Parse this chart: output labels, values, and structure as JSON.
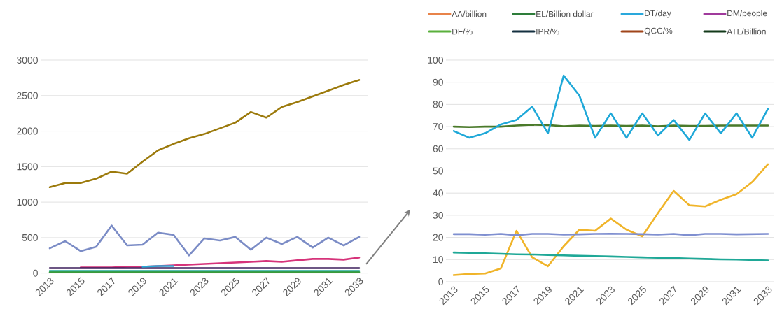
{
  "chart_data": [
    {
      "type": "line",
      "categories": [
        "2013",
        null,
        "2015",
        null,
        "2017",
        null,
        "2019",
        null,
        "2021",
        null,
        "2023",
        null,
        "2025",
        null,
        "2027",
        null,
        "2029",
        null,
        "2031",
        null,
        "2033"
      ],
      "ylim": [
        0,
        3000
      ],
      "yticks": [
        0,
        500,
        1000,
        1500,
        2000,
        2500,
        3000
      ],
      "grid": "y",
      "marker": "none",
      "line_style": "solid",
      "series": [
        {
          "color": "#9c7a0c",
          "values": [
            1210,
            1270,
            1270,
            1330,
            1430,
            1400,
            1570,
            1730,
            1820,
            1900,
            1960,
            2040,
            2120,
            2270,
            2190,
            2340,
            2410,
            2490,
            2570,
            2650,
            2720
          ]
        },
        {
          "color": "#7b8cc6",
          "values": [
            350,
            450,
            310,
            370,
            670,
            390,
            400,
            570,
            540,
            250,
            490,
            460,
            510,
            330,
            500,
            410,
            510,
            360,
            500,
            390,
            510
          ]
        },
        {
          "color": "#d6337a",
          "values": [
            null,
            null,
            80,
            80,
            80,
            90,
            90,
            100,
            110,
            120,
            130,
            140,
            150,
            160,
            170,
            160,
            180,
            200,
            200,
            190,
            220
          ]
        },
        {
          "color": "#3d1f5c",
          "values": [
            70,
            70,
            70,
            70,
            70,
            70,
            70,
            70,
            70,
            70,
            70,
            70,
            70,
            70,
            70,
            70,
            70,
            70,
            70,
            70,
            70
          ]
        },
        {
          "color": "#29a9d6",
          "values": [
            null,
            null,
            null,
            null,
            null,
            null,
            90,
            100,
            100,
            null,
            null,
            null,
            null,
            null,
            null,
            null,
            null,
            null,
            null,
            null,
            null
          ]
        },
        {
          "color": "#22a99a",
          "values": [
            30,
            30,
            30,
            30,
            30,
            30,
            30,
            30,
            30,
            30,
            30,
            30,
            30,
            30,
            30,
            30,
            30,
            30,
            30,
            30,
            30
          ]
        },
        {
          "color": "#3a9a3a",
          "values": [
            10,
            10,
            10,
            10,
            10,
            10,
            10,
            10,
            10,
            10,
            10,
            10,
            10,
            10,
            10,
            10,
            10,
            10,
            10,
            10,
            10
          ]
        }
      ]
    },
    {
      "type": "line",
      "categories": [
        "2013",
        null,
        "2015",
        null,
        "2017",
        null,
        "2019",
        null,
        "2021",
        null,
        "2023",
        null,
        "2025",
        null,
        "2027",
        null,
        "2029",
        null,
        "2031",
        null,
        "2033"
      ],
      "ylim": [
        0,
        100
      ],
      "yticks": [
        0,
        10,
        20,
        30,
        40,
        50,
        60,
        70,
        80,
        90,
        100
      ],
      "grid": "y",
      "marker": "none",
      "line_style": "solid",
      "series": [
        {
          "color": "#4a7a2a",
          "values": [
            70,
            69.8,
            70,
            70,
            70.5,
            70.8,
            70.7,
            70.2,
            70.5,
            70.3,
            70.5,
            70.3,
            70.5,
            70.2,
            70.5,
            70.3,
            70.3,
            70.5,
            70.5,
            70.5,
            70.5
          ]
        },
        {
          "color": "#1fa8d8",
          "values": [
            68,
            65,
            67,
            71,
            73,
            79,
            67,
            93,
            84,
            65,
            76,
            65,
            76,
            66,
            73,
            64,
            76,
            67,
            76,
            65,
            78
          ]
        },
        {
          "color": "#f0b429",
          "values": [
            3,
            3.5,
            3.7,
            6,
            23,
            11,
            7,
            16,
            23.5,
            23,
            28.5,
            23.5,
            20.5,
            31,
            41,
            34.5,
            34,
            37,
            39.5,
            45,
            53
          ]
        },
        {
          "color": "#7f8fd0",
          "values": [
            21.5,
            21.5,
            21.2,
            21.6,
            21,
            21.6,
            21.6,
            21.3,
            21.4,
            21.6,
            21.7,
            21.6,
            21.5,
            21.3,
            21.6,
            21,
            21.6,
            21.6,
            21.4,
            21.5,
            21.6
          ]
        },
        {
          "color": "#1fa897",
          "values": [
            13.2,
            13,
            12.8,
            12.6,
            12.4,
            12.3,
            12.1,
            11.9,
            11.7,
            11.6,
            11.4,
            11.2,
            11,
            10.8,
            10.7,
            10.5,
            10.3,
            10.1,
            10,
            9.8,
            9.6
          ]
        }
      ]
    },
    {
      "type": "other",
      "categories": [
        "AA/billion",
        "EL/Billion dollar",
        "DT/day",
        "DM/people",
        "DF/%",
        "IPR/%",
        "QCC/%",
        "ATL/Billion"
      ],
      "colors": [
        "#e8834a",
        "#2e7d3a",
        "#2aa8dc",
        "#a03a9c",
        "#5ab03c",
        "#143040",
        "#a0451a",
        "#133a1a"
      ]
    }
  ]
}
